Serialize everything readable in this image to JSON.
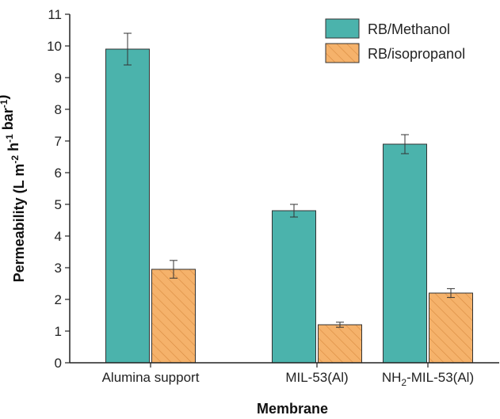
{
  "chart_data": {
    "type": "bar",
    "categories": [
      "Alumina support",
      "MIL-53(Al)",
      "NH2-MIL-53(Al)"
    ],
    "category_display": [
      {
        "main": "Alumina support"
      },
      {
        "main": "MIL-53(Al)"
      },
      {
        "prefix": "NH",
        "sub": "2",
        "suffix": "-MIL-53(Al)"
      }
    ],
    "series": [
      {
        "name": "RB/Methanol",
        "values": [
          9.9,
          4.8,
          6.9
        ],
        "errors": [
          0.5,
          0.2,
          0.3
        ],
        "color": "#4bb3ac",
        "pattern": "solid"
      },
      {
        "name": "RB/isopropanol",
        "values": [
          2.95,
          1.2,
          2.2
        ],
        "errors": [
          0.28,
          0.08,
          0.14
        ],
        "color": "#f5b26b",
        "pattern": "hatched"
      }
    ],
    "xlabel": "Membrane",
    "ylabel": {
      "base": "Permeability (L m",
      "sup1": "-2",
      "mid": " h",
      "sup2": "-1",
      "mid2": " bar",
      "sup3": "-1",
      "end": ")"
    },
    "ylim": [
      0,
      11
    ],
    "yticks": [
      "0",
      "1",
      "2",
      "3",
      "4",
      "5",
      "6",
      "7",
      "8",
      "9",
      "10",
      "11"
    ],
    "grid": false,
    "legend_position": "top-right"
  }
}
